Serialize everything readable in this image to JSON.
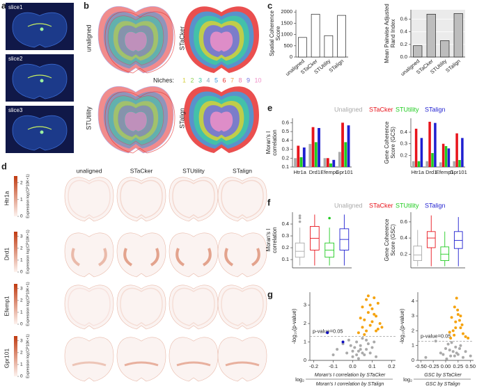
{
  "panel_labels": [
    "a",
    "b",
    "c",
    "d",
    "e",
    "f",
    "g"
  ],
  "panel_a": {
    "slices": [
      "slice1",
      "slice2",
      "slice3"
    ]
  },
  "panel_b": {
    "methods": [
      "unaligned",
      "STaCker",
      "STUtility",
      "STalign"
    ],
    "legend_title": "Niches:",
    "niches": [
      {
        "label": "1",
        "color": "#d6cf3a"
      },
      {
        "label": "2",
        "color": "#8fd14f"
      },
      {
        "label": "3",
        "color": "#3fc9a3"
      },
      {
        "label": "4",
        "color": "#8aa0b8"
      },
      {
        "label": "5",
        "color": "#3f9de0"
      },
      {
        "label": "6",
        "color": "#e63030"
      },
      {
        "label": "7",
        "color": "#f0a050"
      },
      {
        "label": "8",
        "color": "#f07fb0"
      },
      {
        "label": "9",
        "color": "#6f6fe0"
      },
      {
        "label": "10",
        "color": "#f08fc8"
      }
    ]
  },
  "panel_d": {
    "columns": [
      "unaligned",
      "STaCker",
      "STUtility",
      "STalign"
    ],
    "genes": [
      "Htr1a",
      "Drd1",
      "Efemp1",
      "Gpr101"
    ],
    "colorbar_label": "Expression log(CP10K+1)",
    "colorbar_ticks": [
      [
        0,
        1,
        2
      ],
      [
        0,
        1,
        2,
        3
      ],
      [
        0,
        1,
        2,
        3
      ],
      [
        0,
        1,
        2,
        3
      ]
    ]
  },
  "chart_data": [
    {
      "type": "bar",
      "ylabel": [
        "Spatial Coherence",
        "Score"
      ],
      "categories": [
        "unaligned",
        "STaCker",
        "STUtility",
        "STalign"
      ],
      "values": [
        870,
        1900,
        950,
        1850
      ],
      "color": "#ffffff",
      "ylim": [
        0,
        2100
      ],
      "yticks": [
        0,
        500,
        1000,
        1500,
        2000
      ]
    },
    {
      "type": "bar",
      "ylabel": [
        "Mean Pairwise Adjusted",
        "Rand Index"
      ],
      "categories": [
        "unaligned",
        "STaCker",
        "STUtility",
        "STalign"
      ],
      "values": [
        0.18,
        0.68,
        0.26,
        0.69
      ],
      "color": "#bdbdbd",
      "ylim": [
        0,
        0.75
      ],
      "yticks": [
        {
          "value": 0,
          "label": "0.0"
        },
        0.2,
        0.4,
        0.6
      ],
      "grid": true
    },
    {
      "type": "grouped_bar",
      "ylabel": [
        "Moran's I",
        "correlation"
      ],
      "categories": [
        "Htr1a",
        "Drd1",
        "Efemp1",
        "Gpr101"
      ],
      "series": [
        {
          "name": "Unaligned",
          "color": "#aaaaaa",
          "values": [
            0.2,
            0.36,
            0.2,
            0.27
          ]
        },
        {
          "name": "STaCker",
          "color": "#e8141c",
          "values": [
            0.34,
            0.55,
            0.2,
            0.6
          ]
        },
        {
          "name": "STUtility",
          "color": "#22cc22",
          "values": [
            0.21,
            0.38,
            0.14,
            0.38
          ]
        },
        {
          "name": "STalign",
          "color": "#1f1fd0",
          "values": [
            0.32,
            0.54,
            0.18,
            0.57
          ]
        }
      ],
      "ylim": [
        0.1,
        0.65
      ],
      "yticks": [
        0.1,
        0.2,
        0.3,
        0.4,
        0.5,
        0.6
      ]
    },
    {
      "type": "grouped_bar",
      "ylabel": [
        "Gene Coherence",
        "Score (GCS)"
      ],
      "categories": [
        "Htr1a",
        "Drd1",
        "Efemp1",
        "Gpr101"
      ],
      "series": [
        {
          "color": "#aaaaaa",
          "values": [
            0.15,
            0.15,
            0.14,
            0.15
          ]
        },
        {
          "color": "#e8141c",
          "values": [
            0.43,
            0.49,
            0.3,
            0.39
          ]
        },
        {
          "color": "#22cc22",
          "values": [
            0.15,
            0.22,
            0.28,
            0.16
          ]
        },
        {
          "color": "#1f1fd0",
          "values": [
            0.35,
            0.48,
            0.26,
            0.35
          ]
        }
      ],
      "ylim": [
        0.1,
        0.52
      ],
      "yticks": [
        0.2,
        0.3,
        0.4
      ]
    },
    {
      "type": "box",
      "ylabel": [
        "Moran's I",
        "correlation"
      ],
      "series": [
        {
          "name": "Unaligned",
          "color": "#aaaaaa",
          "box": [
            0.05,
            0.12,
            0.17,
            0.24,
            0.37
          ],
          "outliers": [
            0.42,
            0.45,
            0.47
          ]
        },
        {
          "name": "STaCker",
          "color": "#e8141c",
          "box": [
            0.05,
            0.18,
            0.28,
            0.38,
            0.48
          ],
          "outliers": []
        },
        {
          "name": "STUtility",
          "color": "#22cc22",
          "box": [
            0.05,
            0.12,
            0.18,
            0.24,
            0.37
          ],
          "outliers": [
            0.45
          ]
        },
        {
          "name": "STalign",
          "color": "#1f1fd0",
          "box": [
            0.05,
            0.18,
            0.27,
            0.36,
            0.48
          ],
          "outliers": []
        }
      ],
      "ylim": [
        0.03,
        0.5
      ],
      "yticks": [
        0.1,
        0.2,
        0.3,
        0.4
      ]
    },
    {
      "type": "box",
      "ylabel": [
        "Gene Coherence",
        "Score (GSC)"
      ],
      "series": [
        {
          "color": "#aaaaaa",
          "box": [
            0.05,
            0.12,
            0.19,
            0.3,
            0.5
          ],
          "outliers": []
        },
        {
          "color": "#e8141c",
          "box": [
            0.05,
            0.28,
            0.4,
            0.48,
            0.68
          ],
          "outliers": []
        },
        {
          "color": "#22cc22",
          "box": [
            0.05,
            0.12,
            0.2,
            0.29,
            0.48
          ],
          "outliers": []
        },
        {
          "color": "#1f1fd0",
          "box": [
            0.05,
            0.27,
            0.37,
            0.48,
            0.66
          ],
          "outliers": []
        }
      ],
      "ylim": [
        0.03,
        0.72
      ],
      "yticks": [
        0.2,
        0.4,
        0.6
      ]
    },
    {
      "type": "scatter",
      "ylabel": "-log₁₀(p-value)",
      "xlabel": {
        "prefix": "log₂",
        "numerator": "Moran's I correlation by STaCker",
        "denominator": "Moran's I correlation by STalign"
      },
      "annotation": "p-value=0.05",
      "threshold": 1.3,
      "series": [
        {
          "color": "#aaaaaa",
          "x": [
            -0.1,
            -0.08,
            -0.05,
            -0.03,
            -0.02,
            0,
            0.01,
            0.02,
            0.03,
            0.04,
            0.05,
            0.06,
            0.07,
            0.08,
            0.09,
            0.1,
            0.11,
            0.12,
            0,
            0.03,
            0.05,
            0.07,
            -0.01,
            0.02,
            0.04
          ],
          "y": [
            0.3,
            0.6,
            0.9,
            0.4,
            1.1,
            0.2,
            0.7,
            1.0,
            0.5,
            0.8,
            1.2,
            0.3,
            0.6,
            0.9,
            0.4,
            0.7,
            1.0,
            0.2,
            0.5,
            0.1,
            0.4,
            1.1,
            0.8,
            0.3,
            0.6
          ]
        },
        {
          "color": "#f5a30f",
          "x": [
            0.03,
            0.05,
            0.06,
            0.07,
            0.08,
            0.09,
            0.1,
            0.11,
            0.12,
            0.13,
            0.14,
            0.05,
            0.07,
            0.09,
            0.1,
            0.12,
            0.08,
            0.06,
            0.11,
            0.15,
            0.04,
            0.13
          ],
          "y": [
            1.5,
            1.8,
            2.2,
            1.6,
            2.6,
            3.0,
            2.1,
            3.4,
            2.4,
            1.7,
            2.0,
            2.9,
            3.3,
            1.9,
            2.8,
            1.6,
            3.5,
            1.4,
            2.5,
            1.8,
            2.3,
            3.1
          ]
        },
        {
          "color": "#1010c0",
          "x": [
            -0.13,
            -0.05
          ],
          "y": [
            1.5,
            1.0
          ]
        }
      ],
      "xlim": [
        -0.22,
        0.22
      ],
      "ylim": [
        0,
        3.7
      ],
      "xticks": [
        -0.2,
        -0.1,
        {
          "value": 0,
          "label": "0.0"
        },
        0.1,
        0.2
      ],
      "yticks": [
        0,
        1,
        2,
        3
      ]
    },
    {
      "type": "scatter",
      "ylabel": "-log₁₀(p-value)",
      "xlabel": {
        "prefix": "log₂",
        "numerator": "GSC by STaCker",
        "denominator": "GSC by STalign"
      },
      "annotation": "p-value=0.05",
      "threshold": 1.3,
      "series": [
        {
          "color": "#aaaaaa",
          "x": [
            -0.4,
            -0.2,
            -0.1,
            0,
            0.05,
            0.1,
            0.15,
            0.2,
            0.25,
            0.3,
            0.35,
            0.02,
            0.08,
            0.12,
            0.18,
            0.22,
            0.28,
            -0.05,
            0.4,
            0.5
          ],
          "y": [
            0.2,
            1.3,
            0.5,
            0.8,
            1.1,
            0.3,
            0.6,
            0.9,
            0.4,
            1.0,
            0.2,
            0.1,
            0.7,
            1.2,
            0.3,
            0.5,
            0.8,
            0.4,
            0.6,
            0.3
          ]
        },
        {
          "color": "#f5a30f",
          "x": [
            0.1,
            0.15,
            0.2,
            0.25,
            0.3,
            0.35,
            0.4,
            0.12,
            0.18,
            0.22,
            0.28,
            0.33,
            0.17,
            0.24,
            0.45,
            0.08,
            0.3,
            0.2
          ],
          "y": [
            1.5,
            2.0,
            2.6,
            3.1,
            2.2,
            1.8,
            1.6,
            2.9,
            3.6,
            4.2,
            2.7,
            2.4,
            1.7,
            3.4,
            1.5,
            1.9,
            3.0,
            2.2
          ]
        }
      ],
      "xlim": [
        -0.56,
        0.56
      ],
      "ylim": [
        0,
        4.6
      ],
      "xticks": [
        {
          "value": -0.5,
          "label": "-0.50"
        },
        {
          "value": -0.25,
          "label": "-0.25"
        },
        {
          "value": 0,
          "label": "0.00"
        },
        0.25,
        {
          "value": 0.5,
          "label": "0.50"
        }
      ],
      "yticks": [
        0,
        1,
        2,
        3,
        4
      ]
    }
  ]
}
